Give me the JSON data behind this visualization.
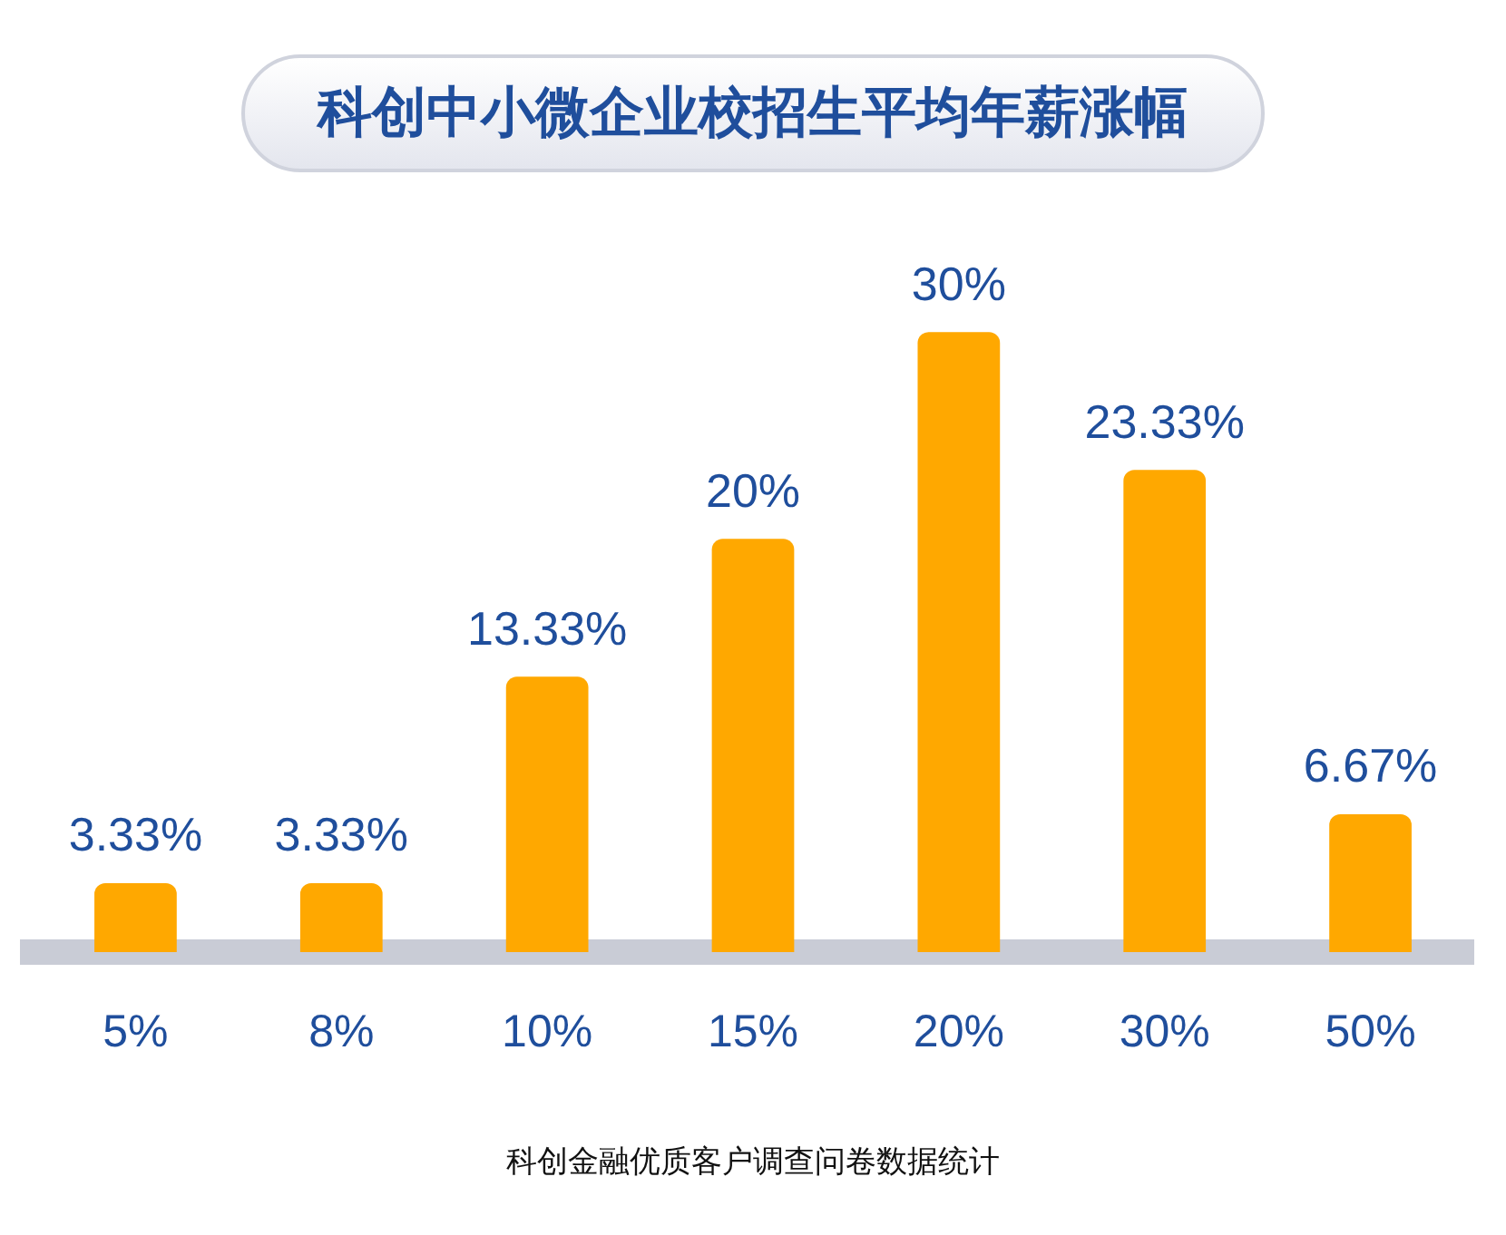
{
  "chart_data": {
    "type": "bar",
    "title": "科创中小微企业校招生平均年薪涨幅",
    "categories": [
      "5%",
      "8%",
      "10%",
      "15%",
      "20%",
      "30%",
      "50%"
    ],
    "values": [
      3.33,
      3.33,
      13.33,
      20,
      30,
      23.33,
      6.67
    ],
    "value_labels": [
      "3.33%",
      "3.33%",
      "13.33%",
      "20%",
      "30%",
      "23.33%",
      "6.67%"
    ],
    "color": "#ffa800",
    "grid": false,
    "legend": false,
    "annotations": [
      "科创金融优质客户调查问卷数据统计"
    ]
  }
}
